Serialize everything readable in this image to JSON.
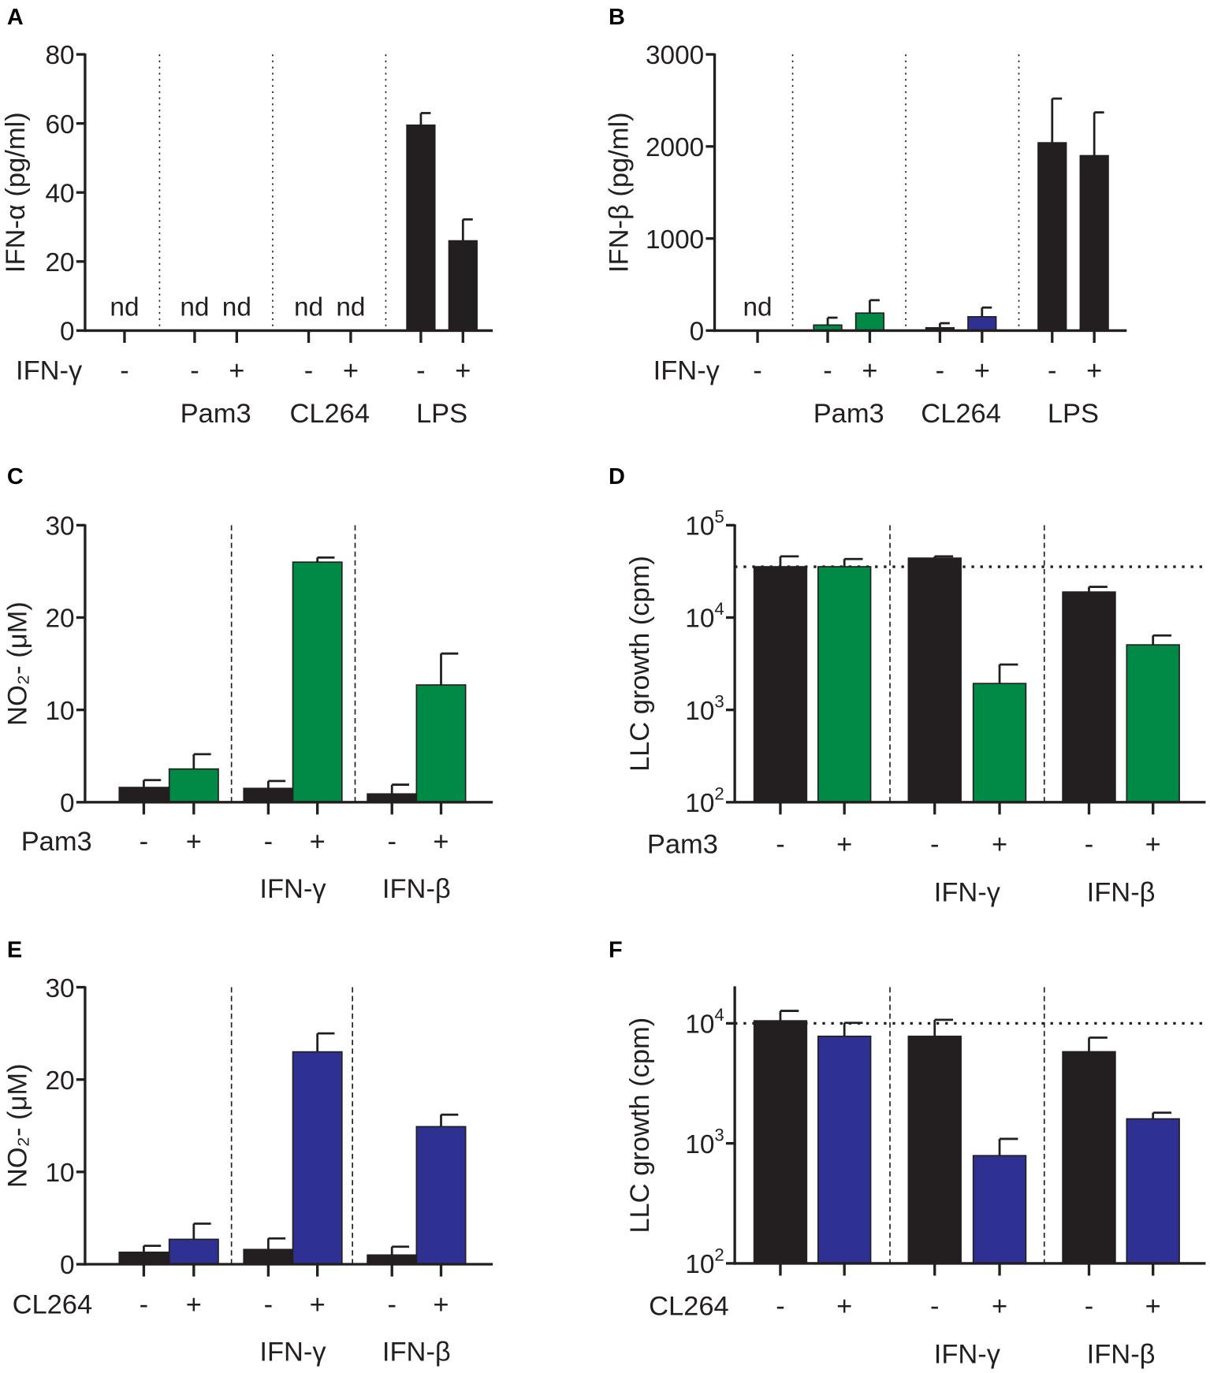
{
  "colors": {
    "black": "#231f20",
    "green": "#008a45",
    "blue": "#2e3192"
  },
  "chart_data": [
    {
      "panel": "A",
      "type": "bar",
      "scale": "linear",
      "ylabel": "IFN-α (pg/ml)",
      "ylim": [
        0,
        80
      ],
      "yticks": [
        0,
        20,
        40,
        60,
        80
      ],
      "factor_label": "IFN-γ",
      "bars": [
        {
          "sign": "-",
          "value": null,
          "error": null,
          "nd": "nd",
          "color": "black"
        },
        {
          "sign": "-",
          "value": null,
          "error": null,
          "nd": "nd",
          "color": "black"
        },
        {
          "sign": "+",
          "value": null,
          "error": null,
          "nd": "nd",
          "color": "black"
        },
        {
          "sign": "-",
          "value": null,
          "error": null,
          "nd": "nd",
          "color": "black"
        },
        {
          "sign": "+",
          "value": null,
          "error": null,
          "nd": "nd",
          "color": "black"
        },
        {
          "sign": "-",
          "value": 59.5,
          "error": 3.5,
          "color": "black"
        },
        {
          "sign": "+",
          "value": 26,
          "error": 6.2,
          "color": "black"
        }
      ],
      "groups": [
        {
          "label": "Pam3",
          "bars": [
            1,
            2
          ]
        },
        {
          "label": "CL264",
          "bars": [
            3,
            4
          ]
        },
        {
          "label": "LPS",
          "bars": [
            5,
            6
          ]
        }
      ],
      "reference_line": null
    },
    {
      "panel": "B",
      "type": "bar",
      "scale": "linear",
      "ylabel": "IFN-β (pg/ml)",
      "ylim": [
        0,
        3000
      ],
      "yticks": [
        0,
        1000,
        2000,
        3000
      ],
      "factor_label": "IFN-γ",
      "bars": [
        {
          "sign": "-",
          "value": null,
          "error": null,
          "nd": "nd",
          "color": "black"
        },
        {
          "sign": "-",
          "value": 60,
          "error": 80,
          "color": "green"
        },
        {
          "sign": "+",
          "value": 190,
          "error": 140,
          "color": "green"
        },
        {
          "sign": "-",
          "value": 30,
          "error": 50,
          "color": "black"
        },
        {
          "sign": "+",
          "value": 150,
          "error": 100,
          "color": "blue"
        },
        {
          "sign": "-",
          "value": 2040,
          "error": 480,
          "color": "black"
        },
        {
          "sign": "+",
          "value": 1900,
          "error": 470,
          "color": "black"
        }
      ],
      "groups": [
        {
          "label": "Pam3",
          "bars": [
            1,
            2
          ]
        },
        {
          "label": "CL264",
          "bars": [
            3,
            4
          ]
        },
        {
          "label": "LPS",
          "bars": [
            5,
            6
          ]
        }
      ],
      "reference_line": null
    },
    {
      "panel": "C",
      "type": "bar",
      "scale": "linear",
      "ylabel": "NO₂- (μM)",
      "ylim": [
        0,
        30
      ],
      "yticks": [
        0,
        10,
        20,
        30
      ],
      "factor_label": "Pam3",
      "bars": [
        {
          "sign": "-",
          "value": 1.6,
          "error": 0.8,
          "color": "black"
        },
        {
          "sign": "+",
          "value": 3.6,
          "error": 1.6,
          "color": "green"
        },
        {
          "sign": "-",
          "value": 1.5,
          "error": 0.8,
          "color": "black"
        },
        {
          "sign": "+",
          "value": 26,
          "error": 0.5,
          "color": "green"
        },
        {
          "sign": "-",
          "value": 0.9,
          "error": 1.0,
          "color": "black"
        },
        {
          "sign": "+",
          "value": 12.7,
          "error": 3.4,
          "color": "green"
        }
      ],
      "groups": [
        {
          "label": "IFN-γ",
          "bars": [
            2,
            3
          ]
        },
        {
          "label": "IFN-β",
          "bars": [
            4,
            5
          ]
        }
      ],
      "reference_line": null
    },
    {
      "panel": "D",
      "type": "bar",
      "scale": "log",
      "ylabel": "LLC growth (cpm)",
      "ylim": [
        100,
        100000
      ],
      "yticks": [
        100,
        1000,
        10000,
        100000
      ],
      "factor_label": "Pam3",
      "bars": [
        {
          "sign": "-",
          "value": 35500,
          "error": 10500,
          "color": "black"
        },
        {
          "sign": "+",
          "value": 35500,
          "error": 7500,
          "color": "green"
        },
        {
          "sign": "-",
          "value": 44000,
          "error": 2000,
          "color": "black"
        },
        {
          "sign": "+",
          "value": 1930,
          "error": 1170,
          "color": "green"
        },
        {
          "sign": "-",
          "value": 18900,
          "error": 2600,
          "color": "black"
        },
        {
          "sign": "+",
          "value": 5060,
          "error": 1340,
          "color": "green"
        }
      ],
      "groups": [
        {
          "label": "IFN-γ",
          "bars": [
            2,
            3
          ]
        },
        {
          "label": "IFN-β",
          "bars": [
            4,
            5
          ]
        }
      ],
      "reference_line": 35500
    },
    {
      "panel": "E",
      "type": "bar",
      "scale": "linear",
      "ylabel": "NO₂- (μM)",
      "ylim": [
        0,
        30
      ],
      "yticks": [
        0,
        10,
        20,
        30
      ],
      "factor_label": "CL264",
      "bars": [
        {
          "sign": "-",
          "value": 1.3,
          "error": 0.7,
          "color": "black"
        },
        {
          "sign": "+",
          "value": 2.7,
          "error": 1.7,
          "color": "blue"
        },
        {
          "sign": "-",
          "value": 1.6,
          "error": 1.2,
          "color": "black"
        },
        {
          "sign": "+",
          "value": 23,
          "error": 2,
          "color": "blue"
        },
        {
          "sign": "-",
          "value": 1.0,
          "error": 0.9,
          "color": "black"
        },
        {
          "sign": "+",
          "value": 14.9,
          "error": 1.3,
          "color": "blue"
        }
      ],
      "groups": [
        {
          "label": "IFN-γ",
          "bars": [
            2,
            3
          ]
        },
        {
          "label": "IFN-β",
          "bars": [
            4,
            5
          ]
        }
      ],
      "reference_line": null
    },
    {
      "panel": "F",
      "type": "bar",
      "scale": "log",
      "ylabel": "LLC growth (cpm)",
      "ylim": [
        100,
        20000
      ],
      "yticks": [
        100,
        1000,
        10000
      ],
      "factor_label": "CL264",
      "bars": [
        {
          "sign": "-",
          "value": 10500,
          "error": 2200,
          "color": "black"
        },
        {
          "sign": "+",
          "value": 7800,
          "error": 2300,
          "color": "blue"
        },
        {
          "sign": "-",
          "value": 7800,
          "error": 2900,
          "color": "black"
        },
        {
          "sign": "+",
          "value": 790,
          "error": 300,
          "color": "blue"
        },
        {
          "sign": "-",
          "value": 5800,
          "error": 1800,
          "color": "black"
        },
        {
          "sign": "+",
          "value": 1600,
          "error": 200,
          "color": "blue"
        }
      ],
      "groups": [
        {
          "label": "IFN-γ",
          "bars": [
            2,
            3
          ]
        },
        {
          "label": "IFN-β",
          "bars": [
            4,
            5
          ]
        }
      ],
      "reference_line": 10000
    }
  ]
}
